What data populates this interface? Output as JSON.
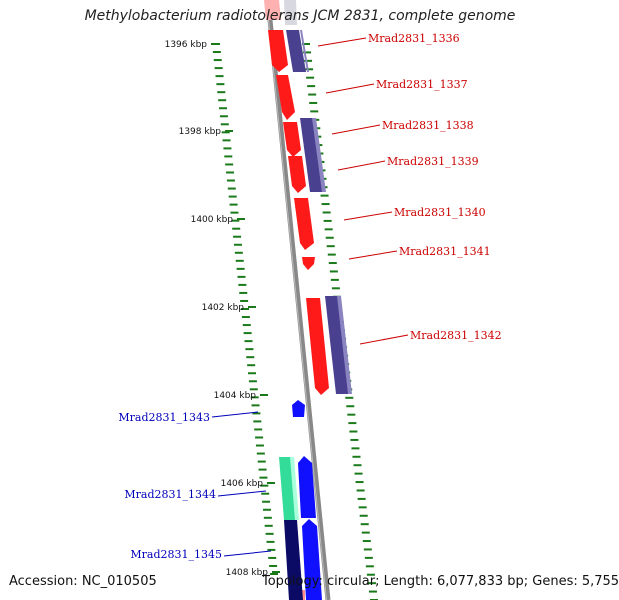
{
  "title": "Methylobacterium radiotolerans JCM 2831, complete genome",
  "footer": {
    "accession": "Accession: NC_010505",
    "info": "Topology: circular; Length: 6,077,833 bp; Genes: 5,755"
  },
  "ticks": [
    {
      "label": "1396 kbp",
      "kbp": 1396
    },
    {
      "label": "1398 kbp",
      "kbp": 1398
    },
    {
      "label": "1400 kbp",
      "kbp": 1400
    },
    {
      "label": "1402 kbp",
      "kbp": 1402
    },
    {
      "label": "1404 kbp",
      "kbp": 1404
    },
    {
      "label": "1406 kbp",
      "kbp": 1406
    },
    {
      "label": "1408 kbp",
      "kbp": 1408
    }
  ],
  "genes_forward": [
    {
      "name": "Mrad2831_1336"
    },
    {
      "name": "Mrad2831_1337"
    },
    {
      "name": "Mrad2831_1338"
    },
    {
      "name": "Mrad2831_1339"
    },
    {
      "name": "Mrad2831_1340"
    },
    {
      "name": "Mrad2831_1341"
    },
    {
      "name": "Mrad2831_1342"
    }
  ],
  "genes_reverse": [
    {
      "name": "Mrad2831_1343"
    },
    {
      "name": "Mrad2831_1344"
    },
    {
      "name": "Mrad2831_1345"
    }
  ],
  "colors": {
    "forward_cds": "#ff1a1a",
    "forward_label": "#cc0000",
    "reverse_cds": "#1010ff",
    "reverse_label": "#0000bb",
    "cog_purple": "#4a4090",
    "cog_teal": "#33dd99",
    "cog_navy": "#0b0b66",
    "backbone": "#888888",
    "tick": "#1a7a1a"
  }
}
